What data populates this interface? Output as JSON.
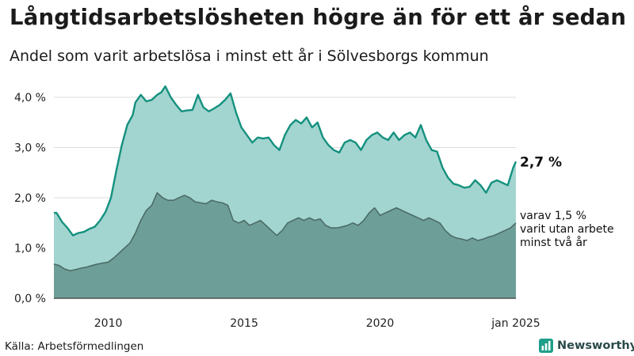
{
  "title": "Långtidsarbetslösheten högre än för ett år sedan",
  "subtitle": "Andel som varit arbetslösa i minst ett år i Sölvesborgs kommun",
  "source": "Källa: Arbetsförmedlingen",
  "brand": "Newsworthy",
  "colors": {
    "total_fill": "#a3d5d0",
    "total_line": "#14917f",
    "sub_fill": "#6e9e98",
    "sub_line": "#4c6c68",
    "grid": "#dcdcdc",
    "brand": "#1f9e8a"
  },
  "chart_data": {
    "type": "area",
    "x_ticks": [
      {
        "x": 2010,
        "label": "2010"
      },
      {
        "x": 2015,
        "label": "2015"
      },
      {
        "x": 2020,
        "label": "2020"
      },
      {
        "x": 2025,
        "label": "jan 2025"
      }
    ],
    "y_ticks": [
      {
        "y": 0,
        "label": "0,0 %"
      },
      {
        "y": 1,
        "label": "1,0 %"
      },
      {
        "y": 2,
        "label": "2,0 %"
      },
      {
        "y": 3,
        "label": "3,0 %"
      },
      {
        "y": 4,
        "label": "4,0 %"
      }
    ],
    "xlim": [
      2008.0,
      2025.0
    ],
    "ylim": [
      0,
      4.3
    ],
    "grid": true,
    "series": [
      {
        "points": [
          [
            2008.0,
            1.7
          ],
          [
            2008.1,
            1.7
          ],
          [
            2008.3,
            1.52
          ],
          [
            2008.5,
            1.4
          ],
          [
            2008.7,
            1.25
          ],
          [
            2008.9,
            1.3
          ],
          [
            2009.1,
            1.32
          ],
          [
            2009.3,
            1.38
          ],
          [
            2009.5,
            1.42
          ],
          [
            2009.7,
            1.55
          ],
          [
            2009.9,
            1.72
          ],
          [
            2010.1,
            2.0
          ],
          [
            2010.3,
            2.55
          ],
          [
            2010.5,
            3.05
          ],
          [
            2010.7,
            3.45
          ],
          [
            2010.9,
            3.65
          ],
          [
            2011.0,
            3.9
          ],
          [
            2011.2,
            4.05
          ],
          [
            2011.4,
            3.92
          ],
          [
            2011.6,
            3.95
          ],
          [
            2011.8,
            4.05
          ],
          [
            2011.95,
            4.1
          ],
          [
            2012.1,
            4.22
          ],
          [
            2012.3,
            4.0
          ],
          [
            2012.5,
            3.85
          ],
          [
            2012.7,
            3.72
          ],
          [
            2012.9,
            3.74
          ],
          [
            2013.1,
            3.75
          ],
          [
            2013.3,
            4.05
          ],
          [
            2013.5,
            3.8
          ],
          [
            2013.7,
            3.72
          ],
          [
            2013.9,
            3.78
          ],
          [
            2014.1,
            3.85
          ],
          [
            2014.3,
            3.95
          ],
          [
            2014.5,
            4.08
          ],
          [
            2014.7,
            3.7
          ],
          [
            2014.9,
            3.4
          ],
          [
            2015.1,
            3.25
          ],
          [
            2015.3,
            3.1
          ],
          [
            2015.5,
            3.2
          ],
          [
            2015.7,
            3.18
          ],
          [
            2015.9,
            3.2
          ],
          [
            2016.1,
            3.05
          ],
          [
            2016.3,
            2.95
          ],
          [
            2016.5,
            3.25
          ],
          [
            2016.7,
            3.45
          ],
          [
            2016.9,
            3.55
          ],
          [
            2017.1,
            3.48
          ],
          [
            2017.3,
            3.6
          ],
          [
            2017.5,
            3.4
          ],
          [
            2017.7,
            3.5
          ],
          [
            2017.9,
            3.2
          ],
          [
            2018.1,
            3.05
          ],
          [
            2018.3,
            2.95
          ],
          [
            2018.5,
            2.9
          ],
          [
            2018.7,
            3.1
          ],
          [
            2018.9,
            3.15
          ],
          [
            2019.1,
            3.1
          ],
          [
            2019.3,
            2.95
          ],
          [
            2019.5,
            3.15
          ],
          [
            2019.7,
            3.25
          ],
          [
            2019.9,
            3.3
          ],
          [
            2020.1,
            3.2
          ],
          [
            2020.3,
            3.15
          ],
          [
            2020.5,
            3.3
          ],
          [
            2020.7,
            3.15
          ],
          [
            2020.9,
            3.25
          ],
          [
            2021.1,
            3.3
          ],
          [
            2021.3,
            3.2
          ],
          [
            2021.5,
            3.45
          ],
          [
            2021.7,
            3.15
          ],
          [
            2021.9,
            2.95
          ],
          [
            2022.1,
            2.92
          ],
          [
            2022.3,
            2.6
          ],
          [
            2022.5,
            2.4
          ],
          [
            2022.7,
            2.28
          ],
          [
            2022.9,
            2.25
          ],
          [
            2023.1,
            2.2
          ],
          [
            2023.3,
            2.22
          ],
          [
            2023.5,
            2.35
          ],
          [
            2023.7,
            2.25
          ],
          [
            2023.9,
            2.1
          ],
          [
            2024.1,
            2.3
          ],
          [
            2024.3,
            2.35
          ],
          [
            2024.5,
            2.3
          ],
          [
            2024.7,
            2.25
          ],
          [
            2024.9,
            2.6
          ],
          [
            2025.0,
            2.72
          ]
        ],
        "end_label": "2,7 %"
      },
      {
        "points": [
          [
            2008.0,
            0.68
          ],
          [
            2008.2,
            0.65
          ],
          [
            2008.4,
            0.58
          ],
          [
            2008.6,
            0.55
          ],
          [
            2008.8,
            0.57
          ],
          [
            2009.0,
            0.6
          ],
          [
            2009.2,
            0.62
          ],
          [
            2009.4,
            0.65
          ],
          [
            2009.6,
            0.68
          ],
          [
            2009.8,
            0.7
          ],
          [
            2010.0,
            0.72
          ],
          [
            2010.2,
            0.8
          ],
          [
            2010.4,
            0.9
          ],
          [
            2010.6,
            1.0
          ],
          [
            2010.8,
            1.1
          ],
          [
            2011.0,
            1.3
          ],
          [
            2011.2,
            1.55
          ],
          [
            2011.4,
            1.75
          ],
          [
            2011.6,
            1.85
          ],
          [
            2011.8,
            2.1
          ],
          [
            2012.0,
            2.0
          ],
          [
            2012.2,
            1.95
          ],
          [
            2012.4,
            1.95
          ],
          [
            2012.6,
            2.0
          ],
          [
            2012.8,
            2.05
          ],
          [
            2013.0,
            2.0
          ],
          [
            2013.2,
            1.92
          ],
          [
            2013.4,
            1.9
          ],
          [
            2013.6,
            1.88
          ],
          [
            2013.8,
            1.95
          ],
          [
            2014.0,
            1.92
          ],
          [
            2014.2,
            1.9
          ],
          [
            2014.4,
            1.85
          ],
          [
            2014.6,
            1.55
          ],
          [
            2014.8,
            1.5
          ],
          [
            2015.0,
            1.55
          ],
          [
            2015.2,
            1.45
          ],
          [
            2015.4,
            1.5
          ],
          [
            2015.6,
            1.55
          ],
          [
            2015.8,
            1.45
          ],
          [
            2016.0,
            1.35
          ],
          [
            2016.2,
            1.25
          ],
          [
            2016.4,
            1.35
          ],
          [
            2016.6,
            1.5
          ],
          [
            2016.8,
            1.55
          ],
          [
            2017.0,
            1.6
          ],
          [
            2017.2,
            1.55
          ],
          [
            2017.4,
            1.6
          ],
          [
            2017.6,
            1.55
          ],
          [
            2017.8,
            1.58
          ],
          [
            2018.0,
            1.45
          ],
          [
            2018.2,
            1.4
          ],
          [
            2018.4,
            1.4
          ],
          [
            2018.6,
            1.42
          ],
          [
            2018.8,
            1.45
          ],
          [
            2019.0,
            1.5
          ],
          [
            2019.2,
            1.45
          ],
          [
            2019.4,
            1.55
          ],
          [
            2019.6,
            1.7
          ],
          [
            2019.8,
            1.8
          ],
          [
            2020.0,
            1.65
          ],
          [
            2020.2,
            1.7
          ],
          [
            2020.4,
            1.75
          ],
          [
            2020.6,
            1.8
          ],
          [
            2020.8,
            1.75
          ],
          [
            2021.0,
            1.7
          ],
          [
            2021.2,
            1.65
          ],
          [
            2021.4,
            1.6
          ],
          [
            2021.6,
            1.55
          ],
          [
            2021.8,
            1.6
          ],
          [
            2022.0,
            1.55
          ],
          [
            2022.2,
            1.5
          ],
          [
            2022.4,
            1.35
          ],
          [
            2022.6,
            1.25
          ],
          [
            2022.8,
            1.2
          ],
          [
            2023.0,
            1.18
          ],
          [
            2023.2,
            1.15
          ],
          [
            2023.4,
            1.2
          ],
          [
            2023.6,
            1.15
          ],
          [
            2023.8,
            1.18
          ],
          [
            2024.0,
            1.22
          ],
          [
            2024.2,
            1.25
          ],
          [
            2024.4,
            1.3
          ],
          [
            2024.6,
            1.35
          ],
          [
            2024.8,
            1.4
          ],
          [
            2025.0,
            1.5
          ]
        ],
        "end_label": "varav 1,5 %\nvarit utan arbete\nminst två år"
      }
    ]
  }
}
